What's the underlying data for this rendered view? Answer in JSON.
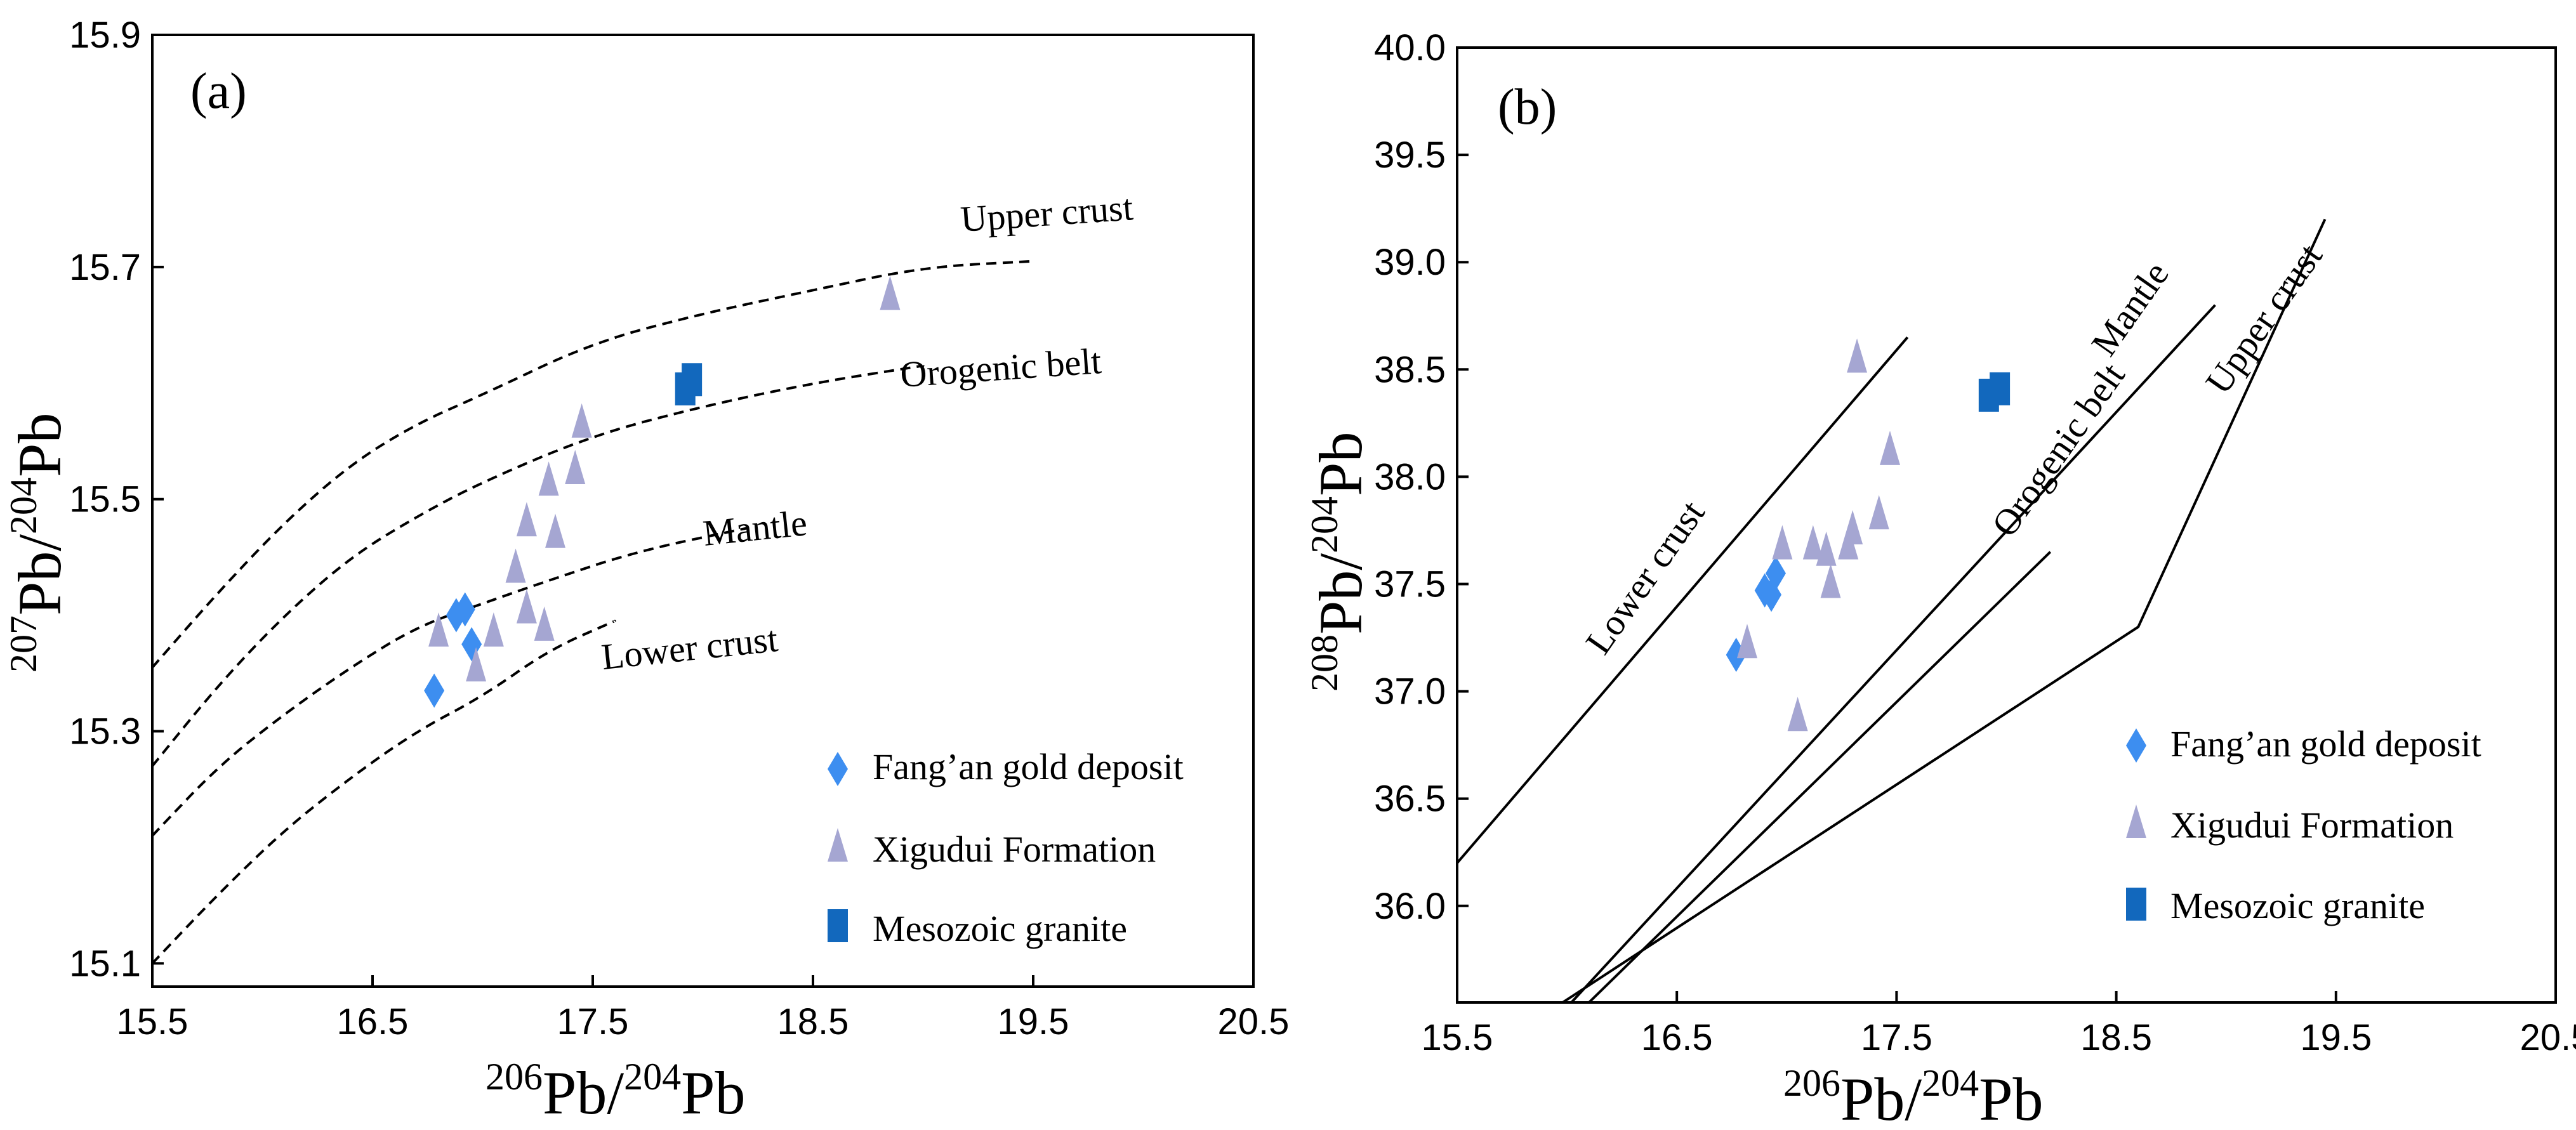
{
  "chart_data": [
    {
      "type": "scatter",
      "panel_label": "(a)",
      "xlabel": {
        "sup1": "206",
        "main1": "Pb/",
        "sup2": "204",
        "main2": "Pb"
      },
      "ylabel": {
        "sup1": "207",
        "main1": "Pb/",
        "sup2": "204",
        "main2": "Pb"
      },
      "xlim": [
        15.5,
        20.5
      ],
      "ylim": [
        15.08,
        15.9
      ],
      "xticks": [
        "15.5",
        "16.5",
        "17.5",
        "18.5",
        "19.5",
        "20.5"
      ],
      "yticks": [
        "15.1",
        "15.3",
        "15.5",
        "15.7",
        "15.9"
      ],
      "curves": [
        {
          "name": "Upper crust",
          "style": "dashed",
          "points": [
            [
              15.5,
              15.355
            ],
            [
              15.8,
              15.42
            ],
            [
              16.1,
              15.48
            ],
            [
              16.4,
              15.53
            ],
            [
              16.7,
              15.565
            ],
            [
              17.0,
              15.59
            ],
            [
              17.5,
              15.635
            ],
            [
              18.0,
              15.66
            ],
            [
              18.5,
              15.68
            ],
            [
              19.0,
              15.7
            ],
            [
              19.5,
              15.705
            ]
          ]
        },
        {
          "name": "Orogenic belt",
          "style": "dashed",
          "points": [
            [
              15.5,
              15.27
            ],
            [
              15.8,
              15.34
            ],
            [
              16.1,
              15.4
            ],
            [
              16.4,
              15.45
            ],
            [
              16.7,
              15.485
            ],
            [
              17.0,
              15.515
            ],
            [
              17.5,
              15.555
            ],
            [
              18.0,
              15.58
            ],
            [
              18.5,
              15.6
            ],
            [
              19.0,
              15.615
            ]
          ]
        },
        {
          "name": "Mantle",
          "style": "dashed",
          "points": [
            [
              15.5,
              15.21
            ],
            [
              15.8,
              15.27
            ],
            [
              16.1,
              15.315
            ],
            [
              16.4,
              15.355
            ],
            [
              16.7,
              15.39
            ],
            [
              17.0,
              15.41
            ],
            [
              17.3,
              15.43
            ],
            [
              17.7,
              15.455
            ],
            [
              18.2,
              15.475
            ]
          ]
        },
        {
          "name": "Lower crust",
          "style": "dashed",
          "points": [
            [
              15.5,
              15.1
            ],
            [
              15.8,
              15.16
            ],
            [
              16.1,
              15.215
            ],
            [
              16.4,
              15.26
            ],
            [
              16.7,
              15.3
            ],
            [
              17.0,
              15.33
            ],
            [
              17.3,
              15.37
            ],
            [
              17.6,
              15.395
            ]
          ]
        }
      ],
      "curve_labels": [
        "Upper crust",
        "Orogenic belt",
        "Mantle",
        "Lower crust"
      ],
      "series": [
        {
          "name": "Fang’an gold deposit",
          "marker": "diamond",
          "color": "#3d8ef0",
          "points": [
            [
              16.78,
              15.335
            ],
            [
              16.88,
              15.4
            ],
            [
              16.92,
              15.405
            ],
            [
              16.95,
              15.375
            ]
          ]
        },
        {
          "name": "Xigudui Formation",
          "marker": "triangle",
          "color": "#a5a6d2",
          "points": [
            [
              16.8,
              15.385
            ],
            [
              16.97,
              15.355
            ],
            [
              17.05,
              15.385
            ],
            [
              17.15,
              15.44
            ],
            [
              17.2,
              15.48
            ],
            [
              17.2,
              15.405
            ],
            [
              17.28,
              15.39
            ],
            [
              17.3,
              15.515
            ],
            [
              17.33,
              15.47
            ],
            [
              17.42,
              15.525
            ],
            [
              17.45,
              15.565
            ],
            [
              18.85,
              15.675
            ]
          ]
        },
        {
          "name": "Mesozoic granite",
          "marker": "square",
          "color": "#1268bd",
          "points": [
            [
              17.92,
              15.595
            ],
            [
              17.95,
              15.603
            ]
          ]
        }
      ]
    },
    {
      "type": "scatter",
      "panel_label": "(b)",
      "xlabel": {
        "sup1": "206",
        "main1": "Pb/",
        "sup2": "204",
        "main2": "Pb"
      },
      "ylabel": {
        "sup1": "208",
        "main1": "Pb/",
        "sup2": "204",
        "main2": "Pb"
      },
      "xlim": [
        15.5,
        20.5
      ],
      "ylim": [
        35.55,
        40.0
      ],
      "xticks": [
        "15.5",
        "16.5",
        "17.5",
        "18.5",
        "19.5",
        "20.5"
      ],
      "yticks": [
        "36.0",
        "36.5",
        "37.0",
        "37.5",
        "38.0",
        "38.5",
        "39.0",
        "39.5",
        "40.0"
      ],
      "curves": [
        {
          "name": "Lower crust",
          "style": "solid",
          "points": [
            [
              15.5,
              36.2
            ],
            [
              17.55,
              38.65
            ]
          ]
        },
        {
          "name": "Mantle",
          "style": "solid",
          "points": [
            [
              16.02,
              35.55
            ],
            [
              18.95,
              38.8
            ]
          ]
        },
        {
          "name": "Orogenic belt",
          "style": "solid",
          "points": [
            [
              16.1,
              35.55
            ],
            [
              18.2,
              37.65
            ]
          ]
        },
        {
          "name": "Upper crust",
          "style": "solid",
          "points": [
            [
              15.98,
              35.55
            ],
            [
              18.6,
              37.3
            ],
            [
              19.45,
              39.2
            ]
          ]
        }
      ],
      "curve_labels": [
        "Lower crust",
        "Mantle",
        "Orogenic belt",
        "Upper crust"
      ],
      "series": [
        {
          "name": "Fang’an gold deposit",
          "marker": "diamond",
          "color": "#3d8ef0",
          "points": [
            [
              16.77,
              37.17
            ],
            [
              16.9,
              37.47
            ],
            [
              16.93,
              37.45
            ],
            [
              16.95,
              37.55
            ]
          ]
        },
        {
          "name": "Xigudui Formation",
          "marker": "triangle",
          "color": "#a5a6d2",
          "points": [
            [
              16.82,
              37.22
            ],
            [
              16.98,
              37.68
            ],
            [
              17.05,
              36.88
            ],
            [
              17.12,
              37.68
            ],
            [
              17.18,
              37.65
            ],
            [
              17.2,
              37.5
            ],
            [
              17.28,
              37.68
            ],
            [
              17.3,
              37.75
            ],
            [
              17.32,
              38.55
            ],
            [
              17.42,
              37.82
            ],
            [
              17.47,
              38.12
            ]
          ]
        },
        {
          "name": "Mesozoic granite",
          "marker": "square",
          "color": "#1268bd",
          "points": [
            [
              17.92,
              38.38
            ],
            [
              17.97,
              38.41
            ]
          ]
        }
      ]
    }
  ]
}
